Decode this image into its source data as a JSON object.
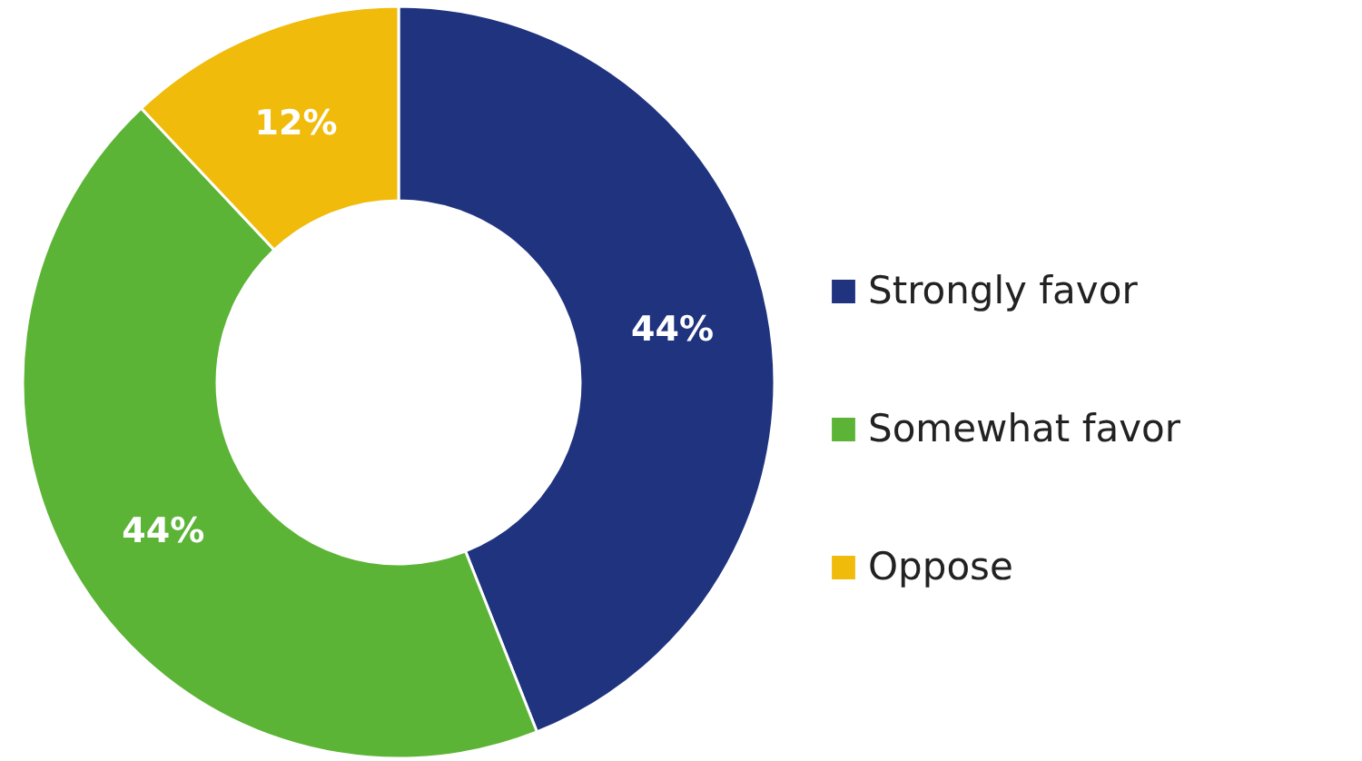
{
  "chart_data": {
    "type": "donut",
    "categories": [
      "Strongly favor",
      "Somewhat favor",
      "Oppose"
    ],
    "values": [
      44,
      44,
      12
    ],
    "value_labels": [
      "44%",
      "44%",
      "12%"
    ],
    "colors": [
      "#1f337f",
      "#5bb435",
      "#f0bb0b"
    ],
    "legend": "right"
  }
}
